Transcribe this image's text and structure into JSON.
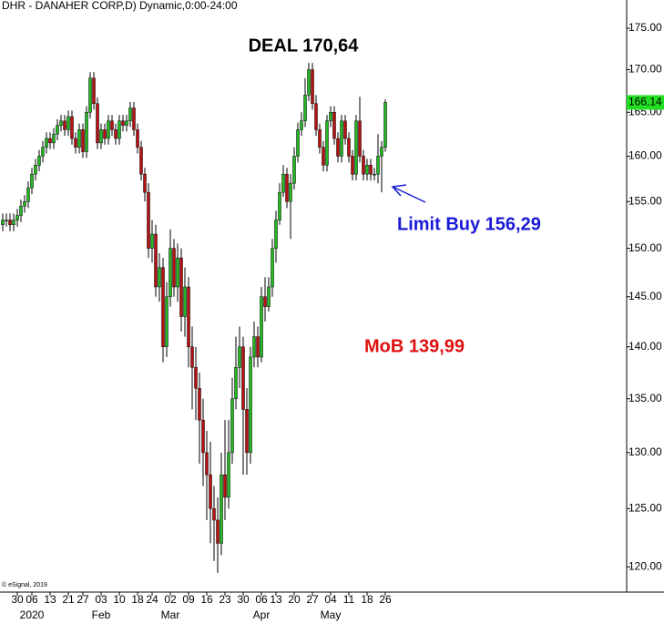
{
  "chart_data": {
    "type": "candlestick",
    "title": "DHR - DANAHER CORP,D) Dynamic,0:00-24:00",
    "copyright": "© eSignal, 2019",
    "annotations": [
      {
        "text": "DEAL 170,64",
        "color": "#000000"
      },
      {
        "text": "Limit Buy 156,29",
        "color": "#1a1ad6"
      },
      {
        "text": "MoB 139,99",
        "color": "#e01010"
      }
    ],
    "up_color": "#22b822",
    "down_color": "#b81010",
    "last_price_color": "#22dd22",
    "log_scale": true,
    "categories": [
      null,
      null,
      null,
      null,
      "30",
      null,
      null,
      null,
      "06",
      null,
      null,
      null,
      null,
      "13",
      null,
      null,
      null,
      null,
      "21",
      null,
      null,
      null,
      "27",
      null,
      null,
      null,
      null,
      "03",
      null,
      null,
      null,
      null,
      "10",
      null,
      null,
      null,
      null,
      "18",
      null,
      null,
      null,
      "24",
      null,
      null,
      null,
      null,
      "02",
      null,
      null,
      null,
      null,
      "09",
      null,
      null,
      null,
      null,
      "16",
      null,
      null,
      null,
      null,
      "23",
      null,
      null,
      null,
      null,
      "30",
      null,
      null,
      null,
      null,
      "06",
      null,
      null,
      null,
      "13",
      null,
      null,
      null,
      null,
      "20",
      null,
      null,
      null,
      null,
      "27",
      null,
      null,
      null,
      null,
      "04",
      null,
      null,
      null,
      null,
      "11",
      null,
      null,
      null,
      null,
      "18",
      null,
      null,
      null,
      null,
      "26"
    ],
    "periods": [
      "2020",
      "Feb",
      "Mar",
      "Apr",
      "May"
    ],
    "open": [
      152.5,
      153,
      153,
      152.5,
      153,
      153.5,
      154.5,
      155,
      156.5,
      158,
      159,
      160,
      161,
      162,
      161.5,
      162.5,
      163.5,
      164,
      163,
      164.5,
      162,
      161,
      163,
      160.5,
      165,
      169,
      166,
      161.5,
      163,
      162,
      164,
      163,
      162,
      164,
      163.5,
      164,
      165.5,
      163,
      161,
      158,
      156,
      150,
      151.5,
      146,
      148,
      140,
      145,
      150,
      146,
      149,
      143,
      146,
      140,
      138,
      136,
      133,
      130,
      128,
      125,
      124,
      122,
      128,
      126,
      130,
      135,
      138,
      140,
      134,
      130,
      139,
      141,
      139,
      145,
      144,
      146,
      150,
      153,
      156,
      158,
      155,
      157,
      160,
      163,
      164,
      167,
      170,
      166,
      163,
      161,
      159,
      164,
      165,
      162,
      160,
      164,
      162,
      160,
      158,
      164,
      160,
      158,
      159,
      158,
      158,
      160,
      161
    ],
    "high": [
      153.7,
      153.7,
      153.7,
      153.7,
      154.2,
      155.2,
      155.7,
      157.2,
      158.7,
      159.7,
      160.7,
      161.7,
      162.7,
      162.7,
      163.2,
      164.2,
      164.7,
      164.7,
      165.2,
      165.2,
      162.7,
      163.7,
      163.7,
      165.7,
      169.7,
      169.7,
      166.7,
      163.7,
      163.7,
      164.7,
      164.7,
      163.7,
      164.7,
      164.7,
      164.7,
      166.2,
      166.2,
      163.7,
      161.7,
      158.7,
      157,
      153,
      152.5,
      149.5,
      149,
      146.5,
      152,
      151,
      150.5,
      150,
      148,
      147,
      142,
      140,
      137.5,
      135,
      132,
      131,
      127,
      126,
      130,
      133,
      133,
      137,
      141,
      142,
      141,
      136,
      140,
      142.5,
      142,
      146,
      147,
      147,
      151,
      154,
      157,
      159,
      158.7,
      158,
      161,
      163.8,
      165,
      169,
      170.8,
      170.8,
      167,
      163.7,
      161.7,
      164.7,
      165.7,
      165.7,
      162.7,
      164.7,
      164.7,
      162.7,
      160.7,
      164.7,
      166.8,
      160.7,
      159.7,
      159.7,
      158.7,
      162.5,
      161.7,
      166.5
    ],
    "low": [
      151.8,
      152.3,
      151.8,
      151.8,
      152.3,
      152.8,
      153.8,
      154.3,
      155.8,
      157.3,
      158.3,
      159.3,
      160.3,
      160.8,
      160.8,
      161.8,
      162.8,
      162.3,
      162.3,
      161.3,
      160.3,
      160.3,
      159.8,
      159.8,
      164.3,
      165.3,
      160.8,
      160.8,
      161.3,
      161.3,
      162.3,
      161.3,
      161.3,
      162.8,
      162.8,
      163.3,
      162.3,
      160.3,
      157.3,
      155,
      149,
      148.5,
      145,
      144.5,
      138.5,
      139,
      144,
      145,
      144.5,
      141.5,
      141,
      138,
      134,
      133,
      129,
      127,
      124,
      122,
      120.5,
      119.5,
      121,
      124,
      125,
      129,
      134,
      136,
      128,
      128,
      129,
      138,
      138,
      138.5,
      142.5,
      143.5,
      145,
      148.5,
      152.5,
      155.5,
      154.3,
      151,
      156.3,
      159.3,
      162.3,
      163.3,
      166.3,
      165.3,
      162.3,
      160.3,
      158.3,
      158.3,
      163.3,
      161.3,
      159.3,
      159.3,
      161.3,
      159.3,
      157.3,
      157.3,
      159.3,
      157.3,
      157.3,
      157.3,
      157.3,
      157,
      156,
      160.5
    ],
    "close": [
      153,
      153,
      152.5,
      153,
      153.5,
      154.5,
      155,
      156.5,
      158,
      159,
      160,
      161,
      162,
      161.5,
      162.5,
      163.5,
      164,
      163,
      164.5,
      162,
      161,
      163,
      160.5,
      165,
      169,
      166,
      161.5,
      163,
      162,
      164,
      163,
      162,
      164,
      163.5,
      164,
      165.5,
      163,
      161,
      158,
      156,
      150,
      151.5,
      146,
      148,
      140,
      145,
      150,
      146,
      149,
      143,
      146,
      140,
      138,
      136,
      133,
      130,
      128,
      125,
      124,
      122,
      128,
      126,
      130,
      135,
      138,
      140,
      134,
      130,
      139,
      141,
      139,
      145,
      144,
      146,
      150,
      153,
      156,
      158,
      155,
      157,
      160,
      163,
      164,
      167,
      170,
      166,
      163,
      161,
      159,
      164,
      165,
      162,
      160,
      164,
      162,
      160,
      158,
      164,
      160,
      158,
      159,
      158,
      158,
      160,
      161,
      166.14
    ],
    "ylim": [
      117.9,
      178.5
    ],
    "yticks": [
      {
        "value": 120,
        "label": "120.00"
      },
      {
        "value": 125,
        "label": "125.00"
      },
      {
        "value": 130,
        "label": "130.00"
      },
      {
        "value": 135,
        "label": "135.00"
      },
      {
        "value": 140,
        "label": "140.00"
      },
      {
        "value": 145,
        "label": "145.00"
      },
      {
        "value": 150,
        "label": "150.00"
      },
      {
        "value": 155,
        "label": "155.00"
      },
      {
        "value": 160,
        "label": "160.00"
      },
      {
        "value": 165,
        "label": "165.00"
      },
      {
        "value": 170,
        "label": "170.00"
      },
      {
        "value": 175,
        "label": "175.00"
      }
    ]
  }
}
